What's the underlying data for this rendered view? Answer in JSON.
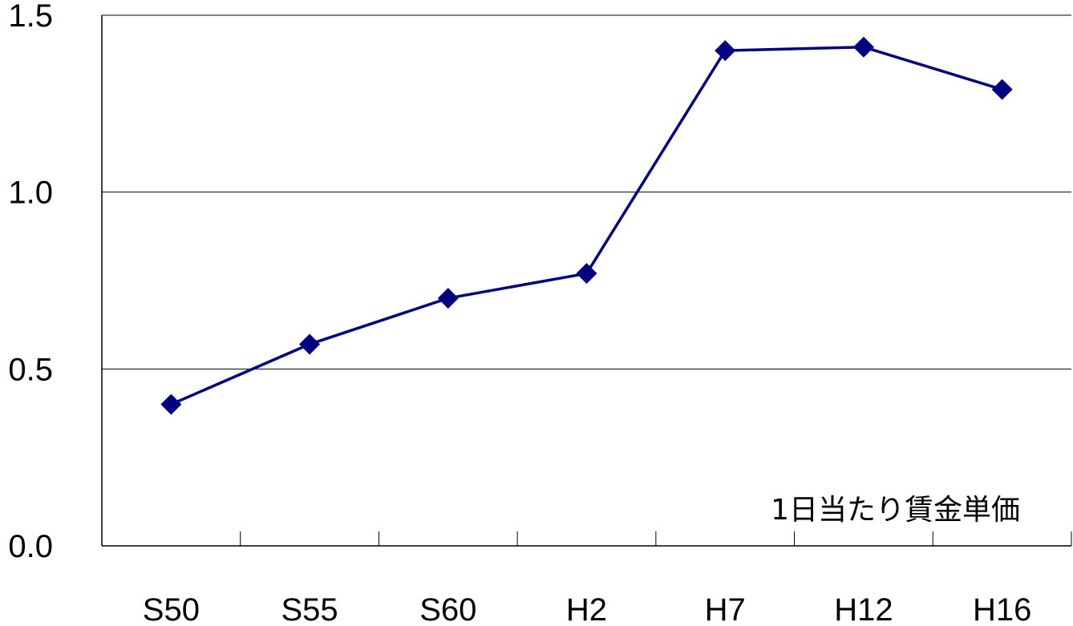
{
  "chart_data": {
    "type": "line",
    "title": "",
    "xlabel": "",
    "ylabel": "",
    "categories": [
      "S50",
      "S55",
      "S60",
      "H2",
      "H7",
      "H12",
      "H16"
    ],
    "series": [
      {
        "values": [
          0.4,
          0.57,
          0.7,
          0.77,
          1.4,
          1.41,
          1.29
        ]
      }
    ],
    "ylim": [
      0.0,
      1.5
    ],
    "yticks": [
      "0.0",
      "0.5",
      "1.0",
      "1.5"
    ],
    "grid": true,
    "legend": "none",
    "annotation": "1日当たり賃金単価",
    "line_color": "#000080",
    "marker": "diamond"
  }
}
